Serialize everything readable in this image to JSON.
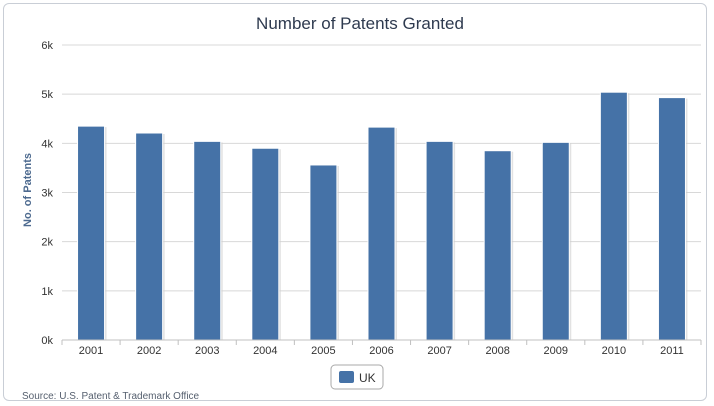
{
  "chart_data": {
    "type": "bar",
    "title": "Number of Patents Granted",
    "xlabel": "",
    "ylabel": "No. of Patents",
    "categories": [
      "2001",
      "2002",
      "2003",
      "2004",
      "2005",
      "2006",
      "2007",
      "2008",
      "2009",
      "2010",
      "2011"
    ],
    "series": [
      {
        "name": "UK",
        "values": [
          4350,
          4210,
          4040,
          3900,
          3560,
          4330,
          4040,
          3850,
          4020,
          5040,
          4930
        ],
        "color": "#4572a7"
      }
    ],
    "ylim": [
      0,
      6000
    ],
    "yticks": [
      "0k",
      "1k",
      "2k",
      "3k",
      "4k",
      "5k",
      "6k"
    ],
    "grid": true,
    "legend_position": "bottom-center",
    "source": "Source: U.S. Patent & Trademark Office"
  }
}
